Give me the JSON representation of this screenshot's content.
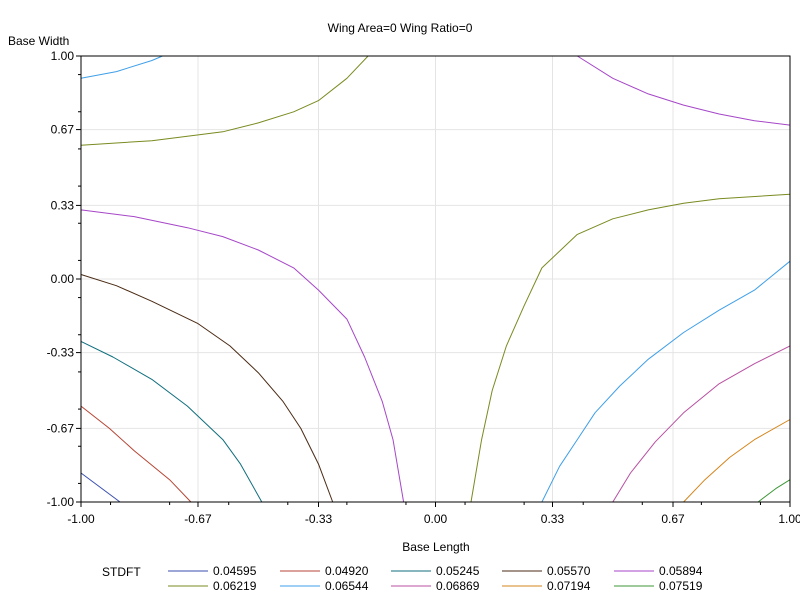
{
  "chart_data": {
    "type": "line",
    "title": "Wing Area=0 Wing Ratio=0",
    "xlabel": "Base Length",
    "ylabel": "Base Width",
    "xlim": [
      -1.0,
      1.0
    ],
    "ylim": [
      -1.0,
      1.0
    ],
    "xticks": [
      "-1.00",
      "-0.67",
      "-0.33",
      "0.00",
      "0.33",
      "0.67",
      "1.00"
    ],
    "yticks": [
      "1.00",
      "0.67",
      "0.33",
      "0.00",
      "-0.33",
      "-0.67",
      "-1.00"
    ],
    "grid": true,
    "legend_title": "STDFT",
    "legend_position": "bottom",
    "series": [
      {
        "name": "0.04595",
        "color": "#3a4fb0",
        "points": [
          [
            -1.0,
            -0.87
          ],
          [
            -0.89,
            -1.0
          ]
        ]
      },
      {
        "name": "0.04920",
        "color": "#b54534",
        "points": [
          [
            -1.0,
            -0.57
          ],
          [
            -0.92,
            -0.67
          ],
          [
            -0.85,
            -0.77
          ],
          [
            -0.75,
            -0.9
          ],
          [
            -0.69,
            -1.0
          ]
        ]
      },
      {
        "name": "0.05245",
        "color": "#0f6e7d",
        "points": [
          [
            -1.0,
            -0.28
          ],
          [
            -0.91,
            -0.35
          ],
          [
            -0.8,
            -0.45
          ],
          [
            -0.7,
            -0.57
          ],
          [
            -0.6,
            -0.72
          ],
          [
            -0.55,
            -0.83
          ],
          [
            -0.49,
            -1.0
          ]
        ]
      },
      {
        "name": "0.05570",
        "color": "#4a2a14",
        "points": [
          [
            -1.0,
            0.02
          ],
          [
            -0.9,
            -0.03
          ],
          [
            -0.8,
            -0.1
          ],
          [
            -0.67,
            -0.2
          ],
          [
            -0.58,
            -0.3
          ],
          [
            -0.5,
            -0.42
          ],
          [
            -0.43,
            -0.55
          ],
          [
            -0.38,
            -0.67
          ],
          [
            -0.33,
            -0.83
          ],
          [
            -0.29,
            -1.0
          ]
        ]
      },
      {
        "name": "0.05894",
        "color": "#a646c8",
        "points": [
          [
            -1.0,
            0.31
          ],
          [
            -0.85,
            0.28
          ],
          [
            -0.7,
            0.23
          ],
          [
            -0.6,
            0.19
          ],
          [
            -0.5,
            0.13
          ],
          [
            -0.4,
            0.05
          ],
          [
            -0.33,
            -0.05
          ],
          [
            -0.25,
            -0.18
          ],
          [
            -0.2,
            -0.35
          ],
          [
            -0.15,
            -0.55
          ],
          [
            -0.12,
            -0.72
          ],
          [
            -0.09,
            -1.0
          ]
        ]
      },
      {
        "name": "0.05894",
        "color": "#a646c8",
        "points": [
          [
            0.4,
            1.0
          ],
          [
            0.5,
            0.9
          ],
          [
            0.6,
            0.83
          ],
          [
            0.7,
            0.78
          ],
          [
            0.8,
            0.74
          ],
          [
            0.9,
            0.71
          ],
          [
            1.0,
            0.69
          ]
        ]
      },
      {
        "name": "0.06219",
        "color": "#7a8a20",
        "points": [
          [
            -1.0,
            0.6
          ],
          [
            -0.8,
            0.62
          ],
          [
            -0.6,
            0.66
          ],
          [
            -0.5,
            0.7
          ],
          [
            -0.4,
            0.75
          ],
          [
            -0.33,
            0.8
          ],
          [
            -0.25,
            0.9
          ],
          [
            -0.19,
            1.0
          ]
        ]
      },
      {
        "name": "0.06219",
        "color": "#7a8a20",
        "points": [
          [
            0.1,
            -1.0
          ],
          [
            0.13,
            -0.72
          ],
          [
            0.16,
            -0.5
          ],
          [
            0.2,
            -0.3
          ],
          [
            0.25,
            -0.12
          ],
          [
            0.3,
            0.05
          ],
          [
            0.4,
            0.2
          ],
          [
            0.5,
            0.27
          ],
          [
            0.6,
            0.31
          ],
          [
            0.7,
            0.34
          ],
          [
            0.8,
            0.36
          ],
          [
            1.0,
            0.38
          ]
        ]
      },
      {
        "name": "0.06544",
        "color": "#3f9fe8",
        "points": [
          [
            -1.0,
            0.9
          ],
          [
            -0.9,
            0.93
          ],
          [
            -0.8,
            0.98
          ],
          [
            -0.77,
            1.0
          ]
        ]
      },
      {
        "name": "0.06544",
        "color": "#3f9fe8",
        "points": [
          [
            0.3,
            -1.0
          ],
          [
            0.35,
            -0.84
          ],
          [
            0.4,
            -0.72
          ],
          [
            0.45,
            -0.6
          ],
          [
            0.52,
            -0.48
          ],
          [
            0.6,
            -0.36
          ],
          [
            0.7,
            -0.24
          ],
          [
            0.8,
            -0.14
          ],
          [
            0.9,
            -0.05
          ],
          [
            1.0,
            0.08
          ]
        ]
      },
      {
        "name": "0.06869",
        "color": "#b84fa0",
        "points": [
          [
            0.5,
            -1.0
          ],
          [
            0.55,
            -0.87
          ],
          [
            0.62,
            -0.73
          ],
          [
            0.7,
            -0.6
          ],
          [
            0.8,
            -0.47
          ],
          [
            0.9,
            -0.38
          ],
          [
            1.0,
            -0.3
          ]
        ]
      },
      {
        "name": "0.07194",
        "color": "#d4851c",
        "points": [
          [
            0.7,
            -1.0
          ],
          [
            0.76,
            -0.9
          ],
          [
            0.83,
            -0.8
          ],
          [
            0.9,
            -0.72
          ],
          [
            1.0,
            -0.63
          ]
        ]
      },
      {
        "name": "0.07519",
        "color": "#3d9638",
        "points": [
          [
            0.91,
            -1.0
          ],
          [
            0.96,
            -0.94
          ],
          [
            1.0,
            -0.9
          ]
        ]
      }
    ],
    "legend": [
      {
        "label": "0.04595",
        "color": "#3a4fb0"
      },
      {
        "label": "0.04920",
        "color": "#b54534"
      },
      {
        "label": "0.05245",
        "color": "#0f6e7d"
      },
      {
        "label": "0.05570",
        "color": "#4a2a14"
      },
      {
        "label": "0.05894",
        "color": "#a646c8"
      },
      {
        "label": "0.06219",
        "color": "#7a8a20"
      },
      {
        "label": "0.06544",
        "color": "#3f9fe8"
      },
      {
        "label": "0.06869",
        "color": "#b84fa0"
      },
      {
        "label": "0.07194",
        "color": "#d4851c"
      },
      {
        "label": "0.07519",
        "color": "#3d9638"
      }
    ]
  }
}
